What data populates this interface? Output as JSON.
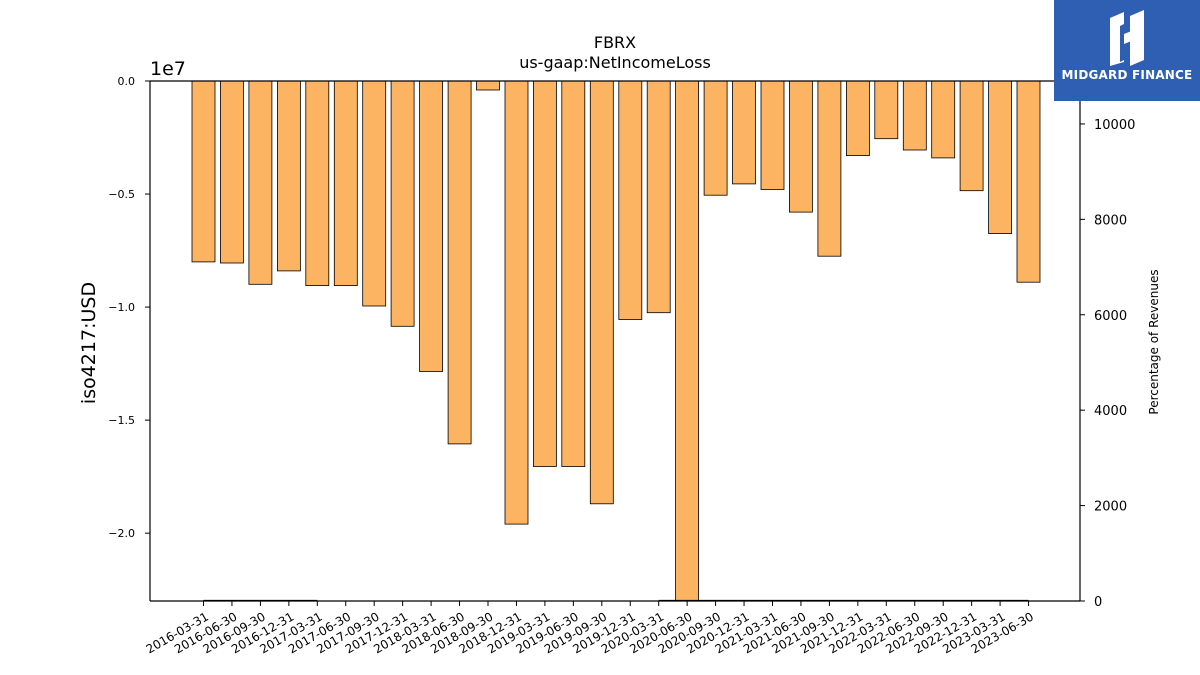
{
  "chart_data": {
    "type": "bar",
    "title": "FBRX",
    "subtitle": "us-gaap:NetIncomeLoss",
    "ylabel": "iso4217:USD",
    "y2label": "Percentage of Revenues",
    "y_offset_label": "1e7",
    "ylim": [
      -23000000.0,
      0
    ],
    "y_ticks": [
      "0.0",
      "−0.5",
      "−1.0",
      "−1.5",
      "−2.0"
    ],
    "y2lim": [
      0,
      10900
    ],
    "y2_ticks": [
      "0",
      "2000",
      "4000",
      "6000",
      "8000",
      "10000"
    ],
    "categories": [
      "2016-03-31",
      "2016-06-30",
      "2016-09-30",
      "2016-12-31",
      "2017-03-31",
      "2017-06-30",
      "2017-09-30",
      "2017-12-31",
      "2018-03-31",
      "2018-06-30",
      "2018-09-30",
      "2018-12-31",
      "2019-03-31",
      "2019-06-30",
      "2019-09-30",
      "2019-12-31",
      "2020-03-31",
      "2020-06-30",
      "2020-09-30",
      "2020-12-31",
      "2021-03-31",
      "2021-06-30",
      "2021-09-30",
      "2021-12-31",
      "2022-03-31",
      "2022-06-30",
      "2022-09-30",
      "2022-12-31",
      "2023-03-31",
      "2023-06-30"
    ],
    "values": [
      -8000000,
      -8050000,
      -8990000,
      -8400000,
      -9050000,
      -9050000,
      -9950000,
      -10850000,
      -12850000,
      -16050000,
      -400000,
      -19600000,
      -17050000,
      -17050000,
      -18700000,
      -10550000,
      -10250000,
      -23000000,
      -5050000,
      -4550000,
      -4800000,
      -5800000,
      -7750000,
      -3300000,
      -2550000,
      -3050000,
      -3400000,
      -4850000,
      -6750000,
      -8900000
    ],
    "percent_of_revenues": [
      9,
      9,
      9,
      9,
      9,
      null,
      null,
      null,
      null,
      null,
      null,
      null,
      null,
      null,
      null,
      null,
      9,
      9,
      9,
      9,
      9,
      9,
      9,
      9,
      9,
      9,
      9,
      9,
      9,
      9
    ],
    "bar_color": "#fdb462",
    "bar_edge": "#000000",
    "grid": false
  },
  "logo": {
    "text": "MIDGARD FINANCE",
    "bg": "#2f5fb3"
  }
}
